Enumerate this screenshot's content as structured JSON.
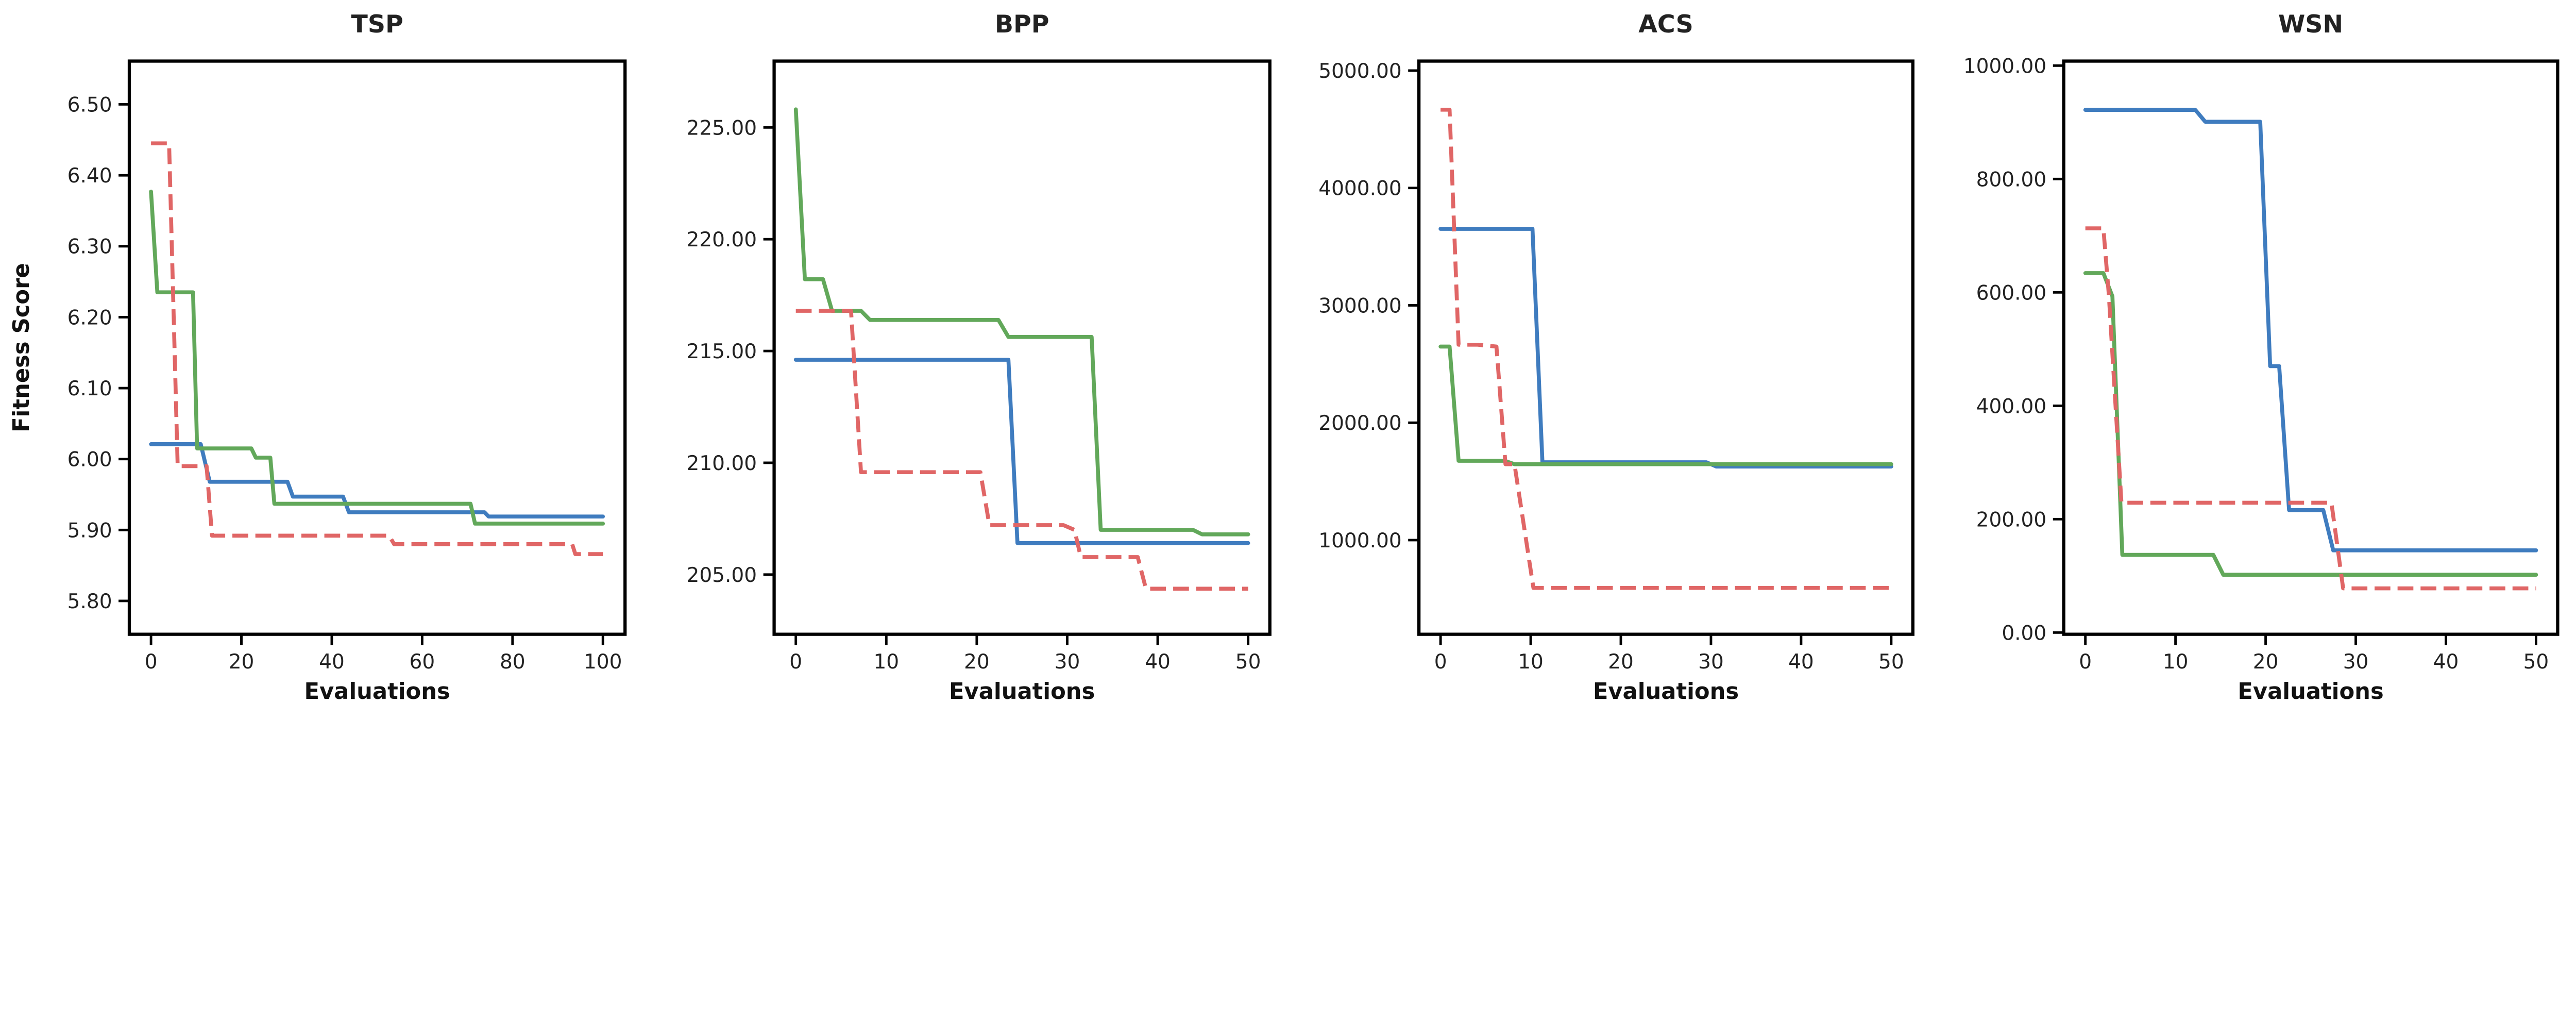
{
  "chart_data": [
    {
      "type": "line",
      "title": "TSP",
      "xlabel": "Evaluations",
      "ylabel": "Fitness Score",
      "xlim": [
        -4.8,
        104.9
      ],
      "ylim": [
        5.753,
        6.561
      ],
      "xticks": [
        0,
        20,
        40,
        60,
        80,
        100
      ],
      "xtick_labels": [
        "0",
        "20",
        "40",
        "60",
        "80",
        "100"
      ],
      "yticks": [
        5.8,
        5.9,
        6.0,
        6.1,
        6.2,
        6.3,
        6.4,
        6.5
      ],
      "ytick_labels": [
        "5.80",
        "5.90",
        "6.00",
        "6.10",
        "6.20",
        "6.30",
        "6.40",
        "6.50"
      ],
      "grid": false,
      "series": [
        {
          "color": "#3f7cbf",
          "dash": false,
          "points": [
            [
              0,
              6.021
            ],
            [
              11,
              6.021
            ],
            [
              13,
              5.968
            ],
            [
              30.2,
              5.968
            ],
            [
              31.4,
              5.947
            ],
            [
              42.5,
              5.947
            ],
            [
              43.8,
              5.925
            ],
            [
              73.8,
              5.925
            ],
            [
              74.7,
              5.919
            ],
            [
              100,
              5.919
            ]
          ]
        },
        {
          "color": "#62a85a",
          "dash": false,
          "points": [
            [
              0,
              6.377
            ],
            [
              1.4,
              6.235
            ],
            [
              9.3,
              6.235
            ],
            [
              10.2,
              6.015
            ],
            [
              22.2,
              6.015
            ],
            [
              23.2,
              6.002
            ],
            [
              26.4,
              6.002
            ],
            [
              27.3,
              5.937
            ],
            [
              70.7,
              5.937
            ],
            [
              71.7,
              5.909
            ],
            [
              100,
              5.909
            ]
          ]
        },
        {
          "color": "#e06666",
          "dash": true,
          "points": [
            [
              0,
              6.445
            ],
            [
              4,
              6.445
            ],
            [
              5.9,
              5.99
            ],
            [
              12.3,
              5.99
            ],
            [
              13.5,
              5.892
            ],
            [
              52.7,
              5.892
            ],
            [
              53.8,
              5.88
            ],
            [
              93.2,
              5.88
            ],
            [
              93.9,
              5.866
            ],
            [
              100,
              5.866
            ]
          ]
        }
      ]
    },
    {
      "type": "line",
      "title": "BPP",
      "xlabel": "Evaluations",
      "ylabel": "",
      "xlim": [
        -2.4,
        52.4
      ],
      "ylim": [
        202.33,
        227.97
      ],
      "xticks": [
        0,
        10,
        20,
        30,
        40,
        50
      ],
      "xtick_labels": [
        "0",
        "10",
        "20",
        "30",
        "40",
        "50"
      ],
      "yticks": [
        205,
        210,
        215,
        220,
        225
      ],
      "ytick_labels": [
        "205.00",
        "210.00",
        "215.00",
        "220.00",
        "225.00"
      ],
      "grid": false,
      "series": [
        {
          "color": "#3f7cbf",
          "dash": false,
          "points": [
            [
              0,
              214.61
            ],
            [
              23.5,
              214.61
            ],
            [
              24.5,
              206.41
            ],
            [
              50,
              206.41
            ]
          ]
        },
        {
          "color": "#62a85a",
          "dash": false,
          "points": [
            [
              0,
              225.81
            ],
            [
              1,
              218.21
            ],
            [
              3,
              218.21
            ],
            [
              4,
              216.8
            ],
            [
              7.2,
              216.8
            ],
            [
              8.2,
              216.39
            ],
            [
              22.4,
              216.39
            ],
            [
              23.5,
              215.63
            ],
            [
              32.7,
              215.63
            ],
            [
              33.7,
              207.0
            ],
            [
              43.9,
              207.0
            ],
            [
              44.9,
              206.8
            ],
            [
              50,
              206.8
            ]
          ]
        },
        {
          "color": "#e06666",
          "dash": true,
          "points": [
            [
              0,
              216.8
            ],
            [
              6.1,
              216.8
            ],
            [
              7.2,
              209.58
            ],
            [
              20.4,
              209.58
            ],
            [
              21.4,
              207.21
            ],
            [
              29.6,
              207.21
            ],
            [
              30.8,
              207.0
            ],
            [
              31.5,
              205.78
            ],
            [
              37.8,
              205.78
            ],
            [
              38.7,
              204.37
            ],
            [
              50,
              204.37
            ]
          ]
        }
      ]
    },
    {
      "type": "line",
      "title": "ACS",
      "xlabel": "Evaluations",
      "ylabel": "",
      "xlim": [
        -2.4,
        52.4
      ],
      "ylim": [
        198,
        5081
      ],
      "xticks": [
        0,
        10,
        20,
        30,
        40,
        50
      ],
      "xtick_labels": [
        "0",
        "10",
        "20",
        "30",
        "40",
        "50"
      ],
      "yticks": [
        1000,
        2000,
        3000,
        4000,
        5000
      ],
      "ytick_labels": [
        "1000.00",
        "2000.00",
        "3000.00",
        "4000.00",
        "5000.00"
      ],
      "grid": false,
      "series": [
        {
          "color": "#3f7cbf",
          "dash": false,
          "points": [
            [
              0,
              3652
            ],
            [
              10.2,
              3652
            ],
            [
              11.3,
              1663
            ],
            [
              29.5,
              1663
            ],
            [
              30.6,
              1627
            ],
            [
              50,
              1627
            ]
          ]
        },
        {
          "color": "#62a85a",
          "dash": false,
          "points": [
            [
              0,
              2649
            ],
            [
              1,
              2649
            ],
            [
              2,
              1676
            ],
            [
              7.1,
              1676
            ],
            [
              8.2,
              1647
            ],
            [
              50,
              1647
            ]
          ]
        },
        {
          "color": "#e06666",
          "dash": true,
          "points": [
            [
              0,
              4667
            ],
            [
              1,
              4667
            ],
            [
              2,
              2665
            ],
            [
              4.1,
              2665
            ],
            [
              6.2,
              2649
            ],
            [
              7.2,
              1647
            ],
            [
              8.2,
              1647
            ],
            [
              10.3,
              593
            ],
            [
              50,
              593
            ]
          ]
        }
      ]
    },
    {
      "type": "line",
      "title": "WSN",
      "xlabel": "Evaluations",
      "ylabel": "",
      "xlim": [
        -2.4,
        52.4
      ],
      "ylim": [
        -3,
        1008
      ],
      "xticks": [
        0,
        10,
        20,
        30,
        40,
        50
      ],
      "xtick_labels": [
        "0",
        "10",
        "20",
        "30",
        "40",
        "50"
      ],
      "yticks": [
        0,
        200,
        400,
        600,
        800,
        1000
      ],
      "ytick_labels": [
        "0.00",
        "200.00",
        "400.00",
        "600.00",
        "800.00",
        "1000.00"
      ],
      "grid": false,
      "series": [
        {
          "color": "#3f7cbf",
          "dash": false,
          "points": [
            [
              0,
              922
            ],
            [
              12.2,
              922
            ],
            [
              13.3,
              901
            ],
            [
              19.4,
              901
            ],
            [
              20.5,
              470
            ],
            [
              21.5,
              470
            ],
            [
              22.6,
              216
            ],
            [
              26.4,
              216
            ],
            [
              27.5,
              145
            ],
            [
              50,
              145
            ]
          ]
        },
        {
          "color": "#62a85a",
          "dash": false,
          "points": [
            [
              0,
              634
            ],
            [
              2,
              634
            ],
            [
              3,
              593
            ],
            [
              4.1,
              137
            ],
            [
              14.2,
              137
            ],
            [
              15.3,
              102
            ],
            [
              50,
              102
            ]
          ]
        },
        {
          "color": "#e06666",
          "dash": true,
          "points": [
            [
              0,
              713
            ],
            [
              2,
              713
            ],
            [
              2.6,
              596
            ],
            [
              4,
              229
            ],
            [
              27.3,
              229
            ],
            [
              28.6,
              78
            ],
            [
              50,
              78
            ]
          ]
        }
      ]
    }
  ]
}
